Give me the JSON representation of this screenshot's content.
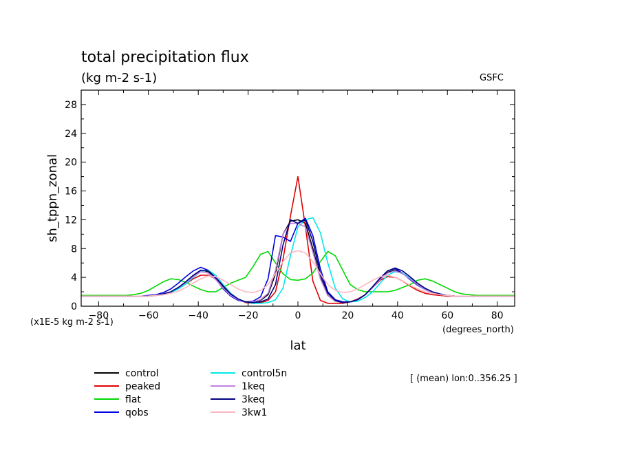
{
  "header": {
    "title": "total precipitation flux",
    "subtitle": "(kg m-2 s-1)",
    "source": "GSFC",
    "scale_note": "(x1E-5 kg m-2 s-1)",
    "x_units": "(degrees_north)",
    "mean_note": "[ (mean) lon:0..356.25 ]"
  },
  "chart_data": {
    "type": "line",
    "xlabel": "lat",
    "ylabel": "sh_tppn_zonal",
    "xlim": [
      -87,
      87
    ],
    "ylim": [
      0,
      30
    ],
    "x_ticks": [
      -80,
      -60,
      -40,
      -20,
      0,
      20,
      40,
      60,
      80
    ],
    "y_ticks": [
      0,
      4,
      8,
      12,
      16,
      20,
      24,
      28
    ],
    "grid": false,
    "legend_position": "bottom",
    "x": [
      -87,
      -84,
      -81,
      -78,
      -75,
      -72,
      -69,
      -66,
      -63,
      -60,
      -57,
      -54,
      -51,
      -48,
      -45,
      -42,
      -39,
      -36,
      -33,
      -30,
      -27,
      -24,
      -21,
      -18,
      -15,
      -12,
      -9,
      -6,
      -3,
      0,
      3,
      6,
      9,
      12,
      15,
      18,
      21,
      24,
      27,
      30,
      33,
      36,
      39,
      42,
      45,
      48,
      51,
      54,
      57,
      60,
      63,
      66,
      69,
      72,
      75,
      78,
      81,
      84,
      87
    ],
    "series": [
      {
        "name": "control",
        "color": "#000000",
        "values": [
          1.4,
          1.4,
          1.4,
          1.4,
          1.4,
          1.4,
          1.4,
          1.4,
          1.4,
          1.4,
          1.5,
          1.7,
          2.0,
          2.6,
          3.3,
          4.2,
          5.0,
          4.8,
          3.9,
          2.7,
          1.6,
          0.9,
          0.6,
          0.6,
          0.8,
          1.6,
          4.5,
          10.0,
          11.8,
          12.0,
          11.5,
          8.0,
          4.0,
          1.5,
          0.7,
          0.5,
          0.6,
          0.9,
          1.6,
          2.6,
          3.7,
          4.7,
          5.0,
          4.6,
          3.9,
          3.1,
          2.4,
          1.9,
          1.6,
          1.5,
          1.4,
          1.4,
          1.4,
          1.4,
          1.4,
          1.4,
          1.4,
          1.4,
          1.4
        ]
      },
      {
        "name": "peaked",
        "color": "#e00000",
        "values": [
          1.4,
          1.4,
          1.4,
          1.4,
          1.4,
          1.4,
          1.4,
          1.4,
          1.4,
          1.4,
          1.5,
          1.7,
          2.0,
          2.5,
          3.1,
          3.8,
          4.3,
          4.3,
          3.8,
          2.8,
          1.8,
          1.0,
          0.5,
          0.4,
          0.5,
          0.8,
          2.0,
          6.5,
          12.5,
          18.0,
          11.0,
          3.5,
          0.8,
          0.4,
          0.4,
          0.4,
          0.6,
          1.0,
          1.6,
          2.6,
          3.6,
          4.1,
          4.0,
          3.5,
          2.8,
          2.2,
          1.8,
          1.6,
          1.5,
          1.4,
          1.4,
          1.4,
          1.4,
          1.4,
          1.4,
          1.4,
          1.4,
          1.4,
          1.4
        ]
      },
      {
        "name": "flat",
        "color": "#00d800",
        "values": [
          1.5,
          1.5,
          1.5,
          1.5,
          1.5,
          1.5,
          1.5,
          1.6,
          1.8,
          2.2,
          2.8,
          3.4,
          3.8,
          3.7,
          3.3,
          2.8,
          2.3,
          2.0,
          2.0,
          2.6,
          3.2,
          3.6,
          4.0,
          5.5,
          7.2,
          7.6,
          6.0,
          4.5,
          3.7,
          3.6,
          3.8,
          4.6,
          6.2,
          7.6,
          7.0,
          5.0,
          3.0,
          2.3,
          2.0,
          2.0,
          2.0,
          2.0,
          2.2,
          2.6,
          3.0,
          3.6,
          3.8,
          3.5,
          3.0,
          2.5,
          2.0,
          1.7,
          1.6,
          1.5,
          1.5,
          1.5,
          1.5,
          1.5,
          1.5
        ]
      },
      {
        "name": "qobs",
        "color": "#0000e0",
        "values": [
          1.4,
          1.4,
          1.4,
          1.4,
          1.4,
          1.4,
          1.4,
          1.4,
          1.4,
          1.5,
          1.6,
          1.9,
          2.4,
          3.2,
          4.1,
          4.9,
          5.4,
          5.0,
          3.8,
          2.4,
          1.4,
          0.8,
          0.6,
          0.7,
          1.3,
          3.8,
          9.8,
          9.6,
          9.0,
          11.5,
          12.2,
          9.8,
          5.2,
          2.0,
          0.9,
          0.6,
          0.6,
          0.9,
          1.6,
          2.7,
          3.9,
          4.9,
          5.2,
          4.6,
          3.7,
          2.9,
          2.3,
          1.9,
          1.6,
          1.5,
          1.4,
          1.4,
          1.4,
          1.4,
          1.4,
          1.4,
          1.4,
          1.4,
          1.4
        ]
      },
      {
        "name": "control5n",
        "color": "#00e8e8",
        "values": [
          1.4,
          1.4,
          1.4,
          1.4,
          1.4,
          1.4,
          1.4,
          1.4,
          1.4,
          1.4,
          1.5,
          1.6,
          1.9,
          2.4,
          3.1,
          4.0,
          4.8,
          5.0,
          4.3,
          3.0,
          1.8,
          1.0,
          0.6,
          0.4,
          0.4,
          0.5,
          0.9,
          2.5,
          7.0,
          11.0,
          12.0,
          12.3,
          10.2,
          6.0,
          2.5,
          1.0,
          0.6,
          0.7,
          1.2,
          2.0,
          3.2,
          4.3,
          4.8,
          4.6,
          3.9,
          3.0,
          2.3,
          1.9,
          1.6,
          1.5,
          1.4,
          1.4,
          1.4,
          1.4,
          1.4,
          1.4,
          1.4,
          1.4,
          1.4
        ]
      },
      {
        "name": "1keq",
        "color": "#c080e0",
        "values": [
          1.4,
          1.4,
          1.4,
          1.4,
          1.4,
          1.4,
          1.4,
          1.4,
          1.4,
          1.4,
          1.5,
          1.7,
          2.0,
          2.6,
          3.3,
          4.1,
          4.8,
          4.6,
          3.7,
          2.5,
          1.5,
          0.9,
          0.6,
          0.6,
          0.9,
          1.8,
          5.0,
          10.0,
          11.5,
          11.5,
          11.0,
          7.5,
          3.8,
          1.5,
          0.7,
          0.5,
          0.6,
          0.9,
          1.6,
          2.6,
          3.7,
          4.6,
          4.9,
          4.5,
          3.8,
          3.0,
          2.3,
          1.9,
          1.6,
          1.5,
          1.4,
          1.4,
          1.4,
          1.4,
          1.4,
          1.4,
          1.4,
          1.4,
          1.4
        ]
      },
      {
        "name": "3keq",
        "color": "#000080",
        "values": [
          1.4,
          1.4,
          1.4,
          1.4,
          1.4,
          1.4,
          1.4,
          1.4,
          1.4,
          1.4,
          1.5,
          1.7,
          2.0,
          2.6,
          3.4,
          4.3,
          5.0,
          4.9,
          4.0,
          2.8,
          1.7,
          1.0,
          0.6,
          0.5,
          0.6,
          1.0,
          3.0,
          8.5,
          12.0,
          11.5,
          12.0,
          9.0,
          4.5,
          1.8,
          0.8,
          0.5,
          0.6,
          0.9,
          1.6,
          2.7,
          3.9,
          4.9,
          5.3,
          4.9,
          4.1,
          3.2,
          2.5,
          2.0,
          1.7,
          1.5,
          1.4,
          1.4,
          1.4,
          1.4,
          1.4,
          1.4,
          1.4,
          1.4,
          1.4
        ]
      },
      {
        "name": "3kw1",
        "color": "#ffb6c1",
        "values": [
          1.4,
          1.4,
          1.4,
          1.4,
          1.4,
          1.4,
          1.4,
          1.4,
          1.4,
          1.4,
          1.5,
          1.6,
          1.8,
          2.1,
          2.6,
          3.2,
          3.8,
          4.2,
          4.1,
          3.6,
          3.0,
          2.4,
          2.0,
          1.9,
          2.2,
          3.0,
          4.5,
          6.2,
          7.4,
          7.7,
          7.4,
          6.2,
          4.5,
          3.0,
          2.2,
          1.9,
          2.0,
          2.4,
          3.0,
          3.6,
          4.1,
          4.3,
          4.0,
          3.5,
          2.9,
          2.4,
          2.0,
          1.8,
          1.6,
          1.5,
          1.4,
          1.4,
          1.4,
          1.4,
          1.4,
          1.4,
          1.4,
          1.4,
          1.4
        ]
      }
    ]
  }
}
